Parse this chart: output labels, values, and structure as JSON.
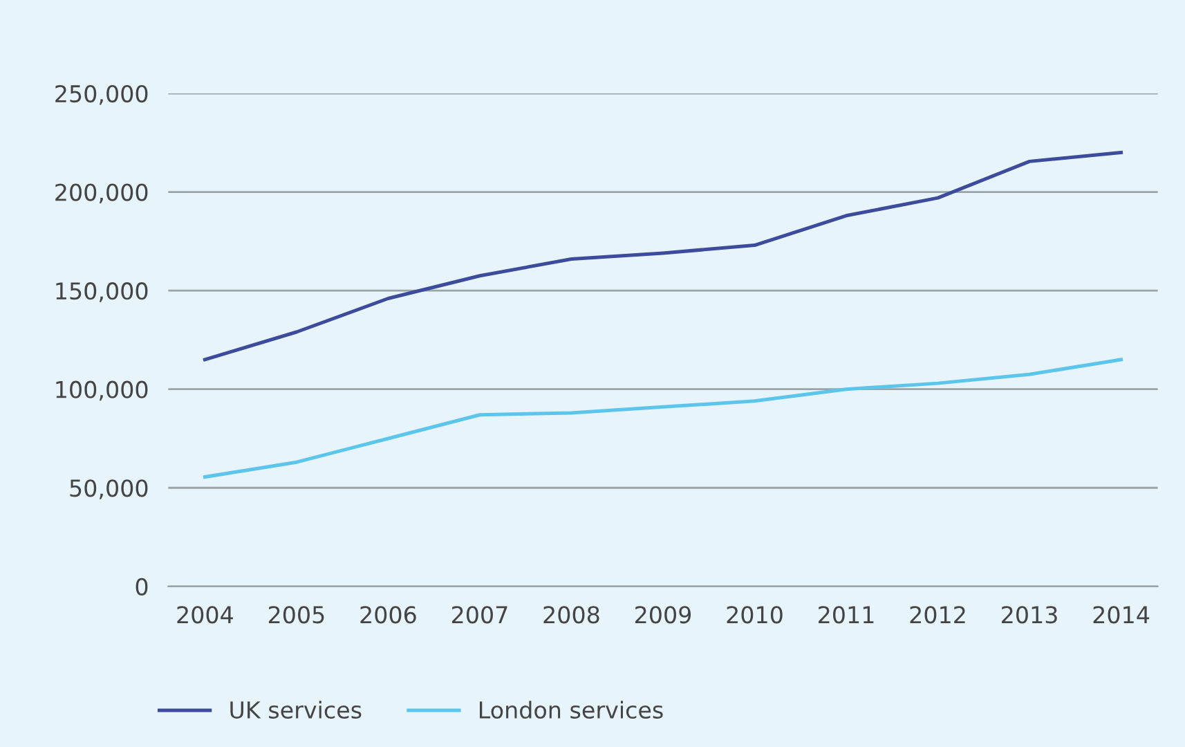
{
  "chart_data": {
    "type": "line",
    "categories": [
      "2004",
      "2005",
      "2006",
      "2007",
      "2008",
      "2009",
      "2010",
      "2011",
      "2012",
      "2013",
      "2014"
    ],
    "series": [
      {
        "name": "UK services",
        "color": "#3d4b9c",
        "values": [
          115000,
          129000,
          146000,
          157500,
          166000,
          169000,
          173000,
          188000,
          197000,
          215500,
          220000
        ]
      },
      {
        "name": "London services",
        "color": "#5bc5ec",
        "values": [
          55500,
          63000,
          75000,
          87000,
          88000,
          91000,
          94000,
          100000,
          103000,
          107500,
          115000
        ]
      }
    ],
    "ylim": [
      0,
      250000
    ],
    "yticks": [
      0,
      {
        "value": 50000,
        "label": "50,000"
      },
      {
        "value": 100000,
        "label": "100,000"
      },
      {
        "value": 150000,
        "label": "150,000"
      },
      {
        "value": 200000,
        "label": "200,000"
      },
      {
        "value": 250000,
        "label": "250,000"
      }
    ],
    "grid": "y",
    "legend": "bottom left",
    "marker": "none",
    "line_style": "solid"
  }
}
